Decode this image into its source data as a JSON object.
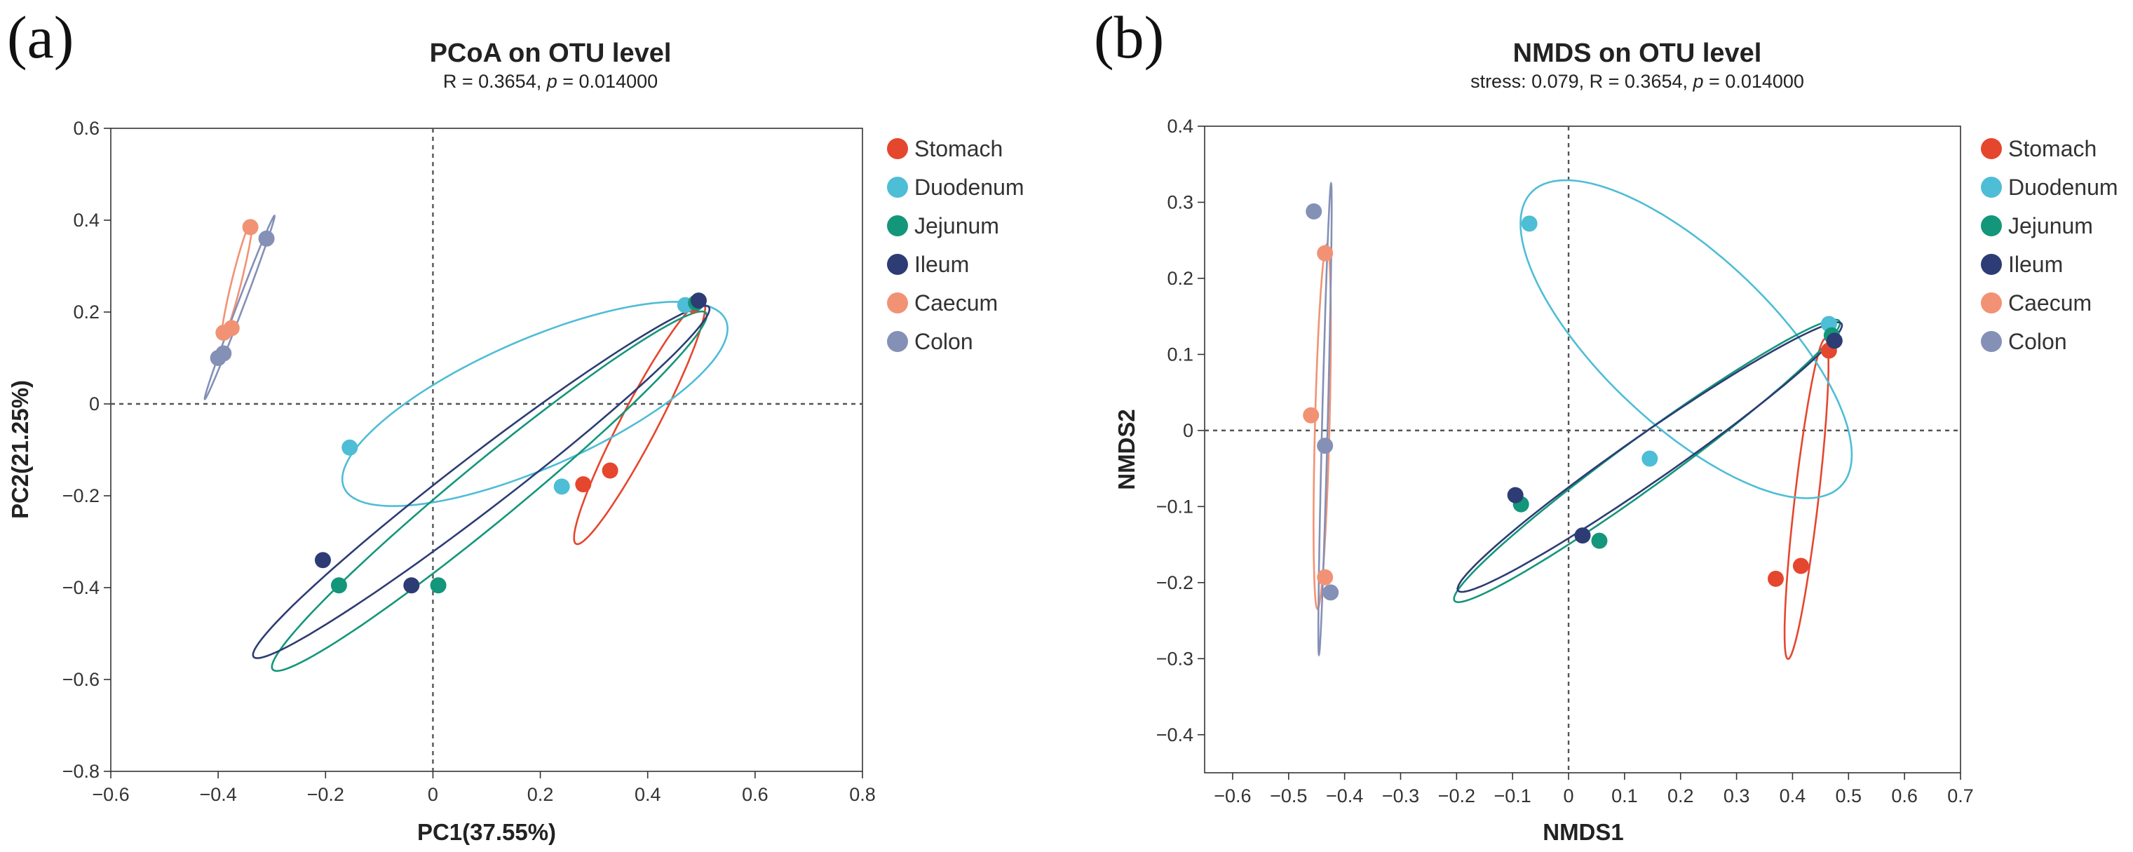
{
  "chart_data": [
    {
      "type": "scatter",
      "panel_label": "(a)",
      "title": "PCoA on OTU level",
      "subtitle": {
        "prefix": "R = 0.3654, ",
        "p_symbol": "p",
        "suffix": " = 0.014000"
      },
      "xlabel": "PC1(37.55%)",
      "ylabel": "PC2(21.25%)",
      "xlim": [
        -0.6,
        0.8
      ],
      "ylim": [
        -0.8,
        0.6
      ],
      "xticks": [
        -0.6,
        -0.4,
        -0.2,
        0,
        0.2,
        0.4,
        0.6,
        0.8
      ],
      "xtick_labels": [
        "−0.6",
        "−0.4",
        "−0.2",
        "0",
        "0.2",
        "0.4",
        "0.6",
        "0.8"
      ],
      "yticks": [
        -0.8,
        -0.6,
        -0.4,
        -0.2,
        0,
        0.2,
        0.4,
        0.6
      ],
      "ytick_labels": [
        "−0.8",
        "−0.6",
        "−0.4",
        "−0.2",
        "0",
        "0.2",
        "0.4",
        "0.6"
      ],
      "zero_lines": true,
      "legend_position": "right",
      "series": [
        {
          "name": "Stomach",
          "color": "#e5462e",
          "points": [
            [
              0.28,
              -0.175
            ],
            [
              0.33,
              -0.145
            ],
            [
              0.485,
              0.215
            ]
          ],
          "ellipse": {
            "cx": 0.385,
            "cy": -0.04,
            "rx": 0.29,
            "ry": 0.035,
            "angle": 66
          }
        },
        {
          "name": "Duodenum",
          "color": "#4ebdd6",
          "points": [
            [
              -0.155,
              -0.095
            ],
            [
              0.24,
              -0.18
            ],
            [
              0.47,
              0.215
            ]
          ],
          "ellipse": {
            "cx": 0.19,
            "cy": 0.0,
            "rx": 0.4,
            "ry": 0.135,
            "angle": 28
          }
        },
        {
          "name": "Jejunum",
          "color": "#14967a",
          "points": [
            [
              -0.175,
              -0.395
            ],
            [
              0.01,
              -0.395
            ],
            [
              0.49,
              0.22
            ]
          ],
          "ellipse": {
            "cx": 0.105,
            "cy": -0.19,
            "rx": 0.56,
            "ry": 0.06,
            "angle": 44
          }
        },
        {
          "name": "Ileum",
          "color": "#2d3c74",
          "points": [
            [
              -0.205,
              -0.34
            ],
            [
              -0.04,
              -0.395
            ],
            [
              0.495,
              0.225
            ]
          ],
          "ellipse": {
            "cx": 0.09,
            "cy": -0.17,
            "rx": 0.57,
            "ry": 0.055,
            "angle": 42
          }
        },
        {
          "name": "Caecum",
          "color": "#f29274",
          "points": [
            [
              -0.34,
              0.385
            ],
            [
              -0.375,
              0.165
            ],
            [
              -0.39,
              0.155
            ]
          ],
          "ellipse": {
            "cx": -0.365,
            "cy": 0.27,
            "rx": 0.13,
            "ry": 0.009,
            "angle": 78
          }
        },
        {
          "name": "Colon",
          "color": "#8490b6",
          "points": [
            [
              -0.31,
              0.36
            ],
            [
              -0.39,
              0.11
            ],
            [
              -0.4,
              0.1
            ]
          ],
          "ellipse": {
            "cx": -0.36,
            "cy": 0.21,
            "rx": 0.21,
            "ry": 0.006,
            "angle": 72
          }
        }
      ]
    },
    {
      "type": "scatter",
      "panel_label": "(b)",
      "title": "NMDS on OTU level",
      "subtitle": {
        "prefix": "stress: 0.079, R = 0.3654, ",
        "p_symbol": "p",
        "suffix": " = 0.014000"
      },
      "xlabel": "NMDS1",
      "ylabel": "NMDS2",
      "xlim": [
        -0.65,
        0.7
      ],
      "ylim": [
        -0.45,
        0.4
      ],
      "xticks": [
        -0.6,
        -0.5,
        -0.4,
        -0.3,
        -0.2,
        -0.1,
        0,
        0.1,
        0.2,
        0.3,
        0.4,
        0.5,
        0.6,
        0.7
      ],
      "xtick_labels": [
        "−0.6",
        "−0.5",
        "−0.4",
        "−0.3",
        "−0.2",
        "−0.1",
        "0",
        "0.1",
        "0.2",
        "0.3",
        "0.4",
        "0.5",
        "0.6",
        "0.7"
      ],
      "yticks": [
        -0.4,
        -0.3,
        -0.2,
        -0.1,
        0,
        0.1,
        0.2,
        0.3,
        0.4
      ],
      "ytick_labels": [
        "−0.4",
        "−0.3",
        "−0.2",
        "−0.1",
        "0",
        "0.1",
        "0.2",
        "0.3",
        "0.4"
      ],
      "zero_lines": true,
      "legend_position": "right",
      "series": [
        {
          "name": "Stomach",
          "color": "#e5462e",
          "points": [
            [
              0.37,
              -0.195
            ],
            [
              0.415,
              -0.178
            ],
            [
              0.465,
              0.105
            ]
          ],
          "ellipse": {
            "cx": 0.425,
            "cy": -0.09,
            "rx": 0.213,
            "ry": 0.021,
            "angle": 81
          }
        },
        {
          "name": "Duodenum",
          "color": "#4ebdd6",
          "points": [
            [
              -0.07,
              0.272
            ],
            [
              0.145,
              -0.037
            ],
            [
              0.465,
              0.14
            ]
          ],
          "ellipse": {
            "cx": 0.21,
            "cy": 0.12,
            "rx": 0.34,
            "ry": 0.125,
            "angle": -32
          }
        },
        {
          "name": "Jejunum",
          "color": "#14967a",
          "points": [
            [
              -0.085,
              -0.097
            ],
            [
              0.055,
              -0.145
            ],
            [
              0.47,
              0.125
            ]
          ],
          "ellipse": {
            "cx": 0.14,
            "cy": -0.04,
            "rx": 0.39,
            "ry": 0.035,
            "angle": 28
          }
        },
        {
          "name": "Ileum",
          "color": "#2d3c74",
          "points": [
            [
              -0.095,
              -0.085
            ],
            [
              0.025,
              -0.138
            ],
            [
              0.475,
              0.118
            ]
          ],
          "ellipse": {
            "cx": 0.145,
            "cy": -0.035,
            "rx": 0.385,
            "ry": 0.033,
            "angle": 27
          }
        },
        {
          "name": "Caecum",
          "color": "#f29274",
          "points": [
            [
              -0.46,
              0.02
            ],
            [
              -0.435,
              0.233
            ],
            [
              -0.435,
              -0.193
            ]
          ],
          "ellipse": {
            "cx": -0.44,
            "cy": 0.005,
            "rx": 0.24,
            "ry": 0.013,
            "angle": 88
          }
        },
        {
          "name": "Colon",
          "color": "#8490b6",
          "points": [
            [
              -0.455,
              0.288
            ],
            [
              -0.435,
              -0.02
            ],
            [
              -0.425,
              -0.213
            ]
          ],
          "ellipse": {
            "cx": -0.435,
            "cy": 0.015,
            "rx": 0.31,
            "ry": 0.005,
            "angle": 88
          }
        }
      ]
    }
  ]
}
